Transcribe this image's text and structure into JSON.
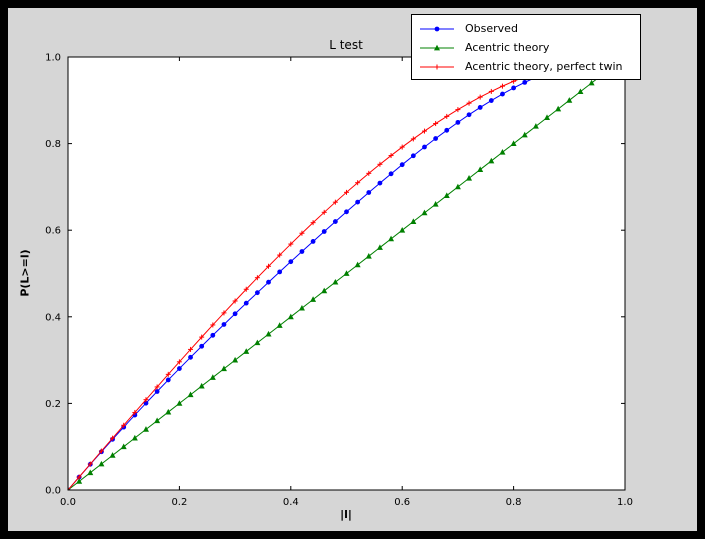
{
  "figure": {
    "outer_background": "#000000",
    "facecolor": "#d6d6d6",
    "axes_facecolor": "#ffffff"
  },
  "chart_data": {
    "type": "line",
    "title": "L test",
    "xlabel": "|l|",
    "ylabel": "P(L>=l)",
    "xlim": [
      0.0,
      1.0
    ],
    "ylim": [
      0.0,
      1.0
    ],
    "xticks": [
      0.0,
      0.2,
      0.4,
      0.6,
      0.8,
      1.0
    ],
    "xticklabels": [
      "0.0",
      "0.2",
      "0.4",
      "0.6",
      "0.8",
      "1.0"
    ],
    "yticks": [
      0.0,
      0.2,
      0.4,
      0.6,
      0.8,
      1.0
    ],
    "yticklabels": [
      "0.0",
      "0.2",
      "0.4",
      "0.6",
      "0.8",
      "1.0"
    ],
    "grid": false,
    "legend_position": "upper right",
    "series": [
      {
        "name": "Observed",
        "color": "#0000ff",
        "marker": "circle",
        "x": [
          0.0,
          0.02,
          0.04,
          0.06,
          0.08,
          0.1,
          0.12,
          0.14,
          0.16,
          0.18,
          0.2,
          0.22,
          0.24,
          0.26,
          0.28,
          0.3,
          0.32,
          0.34,
          0.36,
          0.38,
          0.4,
          0.42,
          0.44,
          0.46,
          0.48,
          0.5,
          0.52,
          0.54,
          0.56,
          0.58,
          0.6,
          0.62,
          0.64,
          0.66,
          0.68,
          0.7,
          0.72,
          0.74,
          0.76,
          0.78,
          0.8,
          0.82,
          0.84,
          0.86
        ],
        "y": [
          0.0,
          0.0298,
          0.0593,
          0.0883,
          0.117,
          0.1452,
          0.173,
          0.2005,
          0.2275,
          0.2542,
          0.2805,
          0.3064,
          0.332,
          0.3573,
          0.3823,
          0.407,
          0.4315,
          0.4557,
          0.4799,
          0.5037,
          0.5273,
          0.5508,
          0.574,
          0.597,
          0.6199,
          0.6425,
          0.6649,
          0.687,
          0.7088,
          0.7302,
          0.7513,
          0.7719,
          0.7921,
          0.8117,
          0.8307,
          0.849,
          0.8667,
          0.8835,
          0.8994,
          0.9144,
          0.9285,
          0.9414,
          0.9532,
          0.9638
        ]
      },
      {
        "name": "Acentric theory",
        "color": "#008000",
        "marker": "triangle",
        "x": [
          0.0,
          0.02,
          0.04,
          0.06,
          0.08,
          0.1,
          0.12,
          0.14,
          0.16,
          0.18,
          0.2,
          0.22,
          0.24,
          0.26,
          0.28,
          0.3,
          0.32,
          0.34,
          0.36,
          0.38,
          0.4,
          0.42,
          0.44,
          0.46,
          0.48,
          0.5,
          0.52,
          0.54,
          0.56,
          0.58,
          0.6,
          0.62,
          0.64,
          0.66,
          0.68,
          0.7,
          0.72,
          0.74,
          0.76,
          0.78,
          0.8,
          0.82,
          0.84,
          0.86,
          0.88,
          0.9,
          0.92,
          0.94,
          0.96
        ],
        "y": [
          0.0,
          0.02,
          0.04,
          0.06,
          0.08,
          0.1,
          0.12,
          0.14,
          0.16,
          0.18,
          0.2,
          0.22,
          0.24,
          0.26,
          0.28,
          0.3,
          0.32,
          0.34,
          0.36,
          0.38,
          0.4,
          0.42,
          0.44,
          0.46,
          0.48,
          0.5,
          0.52,
          0.54,
          0.56,
          0.58,
          0.6,
          0.62,
          0.64,
          0.66,
          0.68,
          0.7,
          0.72,
          0.74,
          0.76,
          0.78,
          0.8,
          0.82,
          0.84,
          0.86,
          0.88,
          0.9,
          0.92,
          0.94,
          0.96
        ]
      },
      {
        "name": "Acentric theory, perfect twin",
        "color": "#ff0000",
        "marker": "plus",
        "x": [
          0.0,
          0.02,
          0.04,
          0.06,
          0.08,
          0.1,
          0.12,
          0.14,
          0.16,
          0.18,
          0.2,
          0.22,
          0.24,
          0.26,
          0.28,
          0.3,
          0.32,
          0.34,
          0.36,
          0.38,
          0.4,
          0.42,
          0.44,
          0.46,
          0.48,
          0.5,
          0.52,
          0.54,
          0.56,
          0.58,
          0.6,
          0.62,
          0.64,
          0.66,
          0.68,
          0.7,
          0.72,
          0.74,
          0.76,
          0.78,
          0.8,
          0.82,
          0.84,
          0.86,
          0.88
        ],
        "y": [
          0.0,
          0.03,
          0.06,
          0.0899,
          0.1197,
          0.1495,
          0.1791,
          0.2086,
          0.238,
          0.2671,
          0.296,
          0.3247,
          0.3531,
          0.3812,
          0.409,
          0.4365,
          0.4636,
          0.4903,
          0.5167,
          0.5426,
          0.568,
          0.593,
          0.6174,
          0.6413,
          0.6647,
          0.6875,
          0.7097,
          0.7313,
          0.7522,
          0.7724,
          0.792,
          0.8108,
          0.8289,
          0.8463,
          0.8628,
          0.8785,
          0.8934,
          0.9074,
          0.9205,
          0.9327,
          0.944,
          0.9543,
          0.9636,
          0.972,
          0.9793
        ]
      }
    ]
  }
}
